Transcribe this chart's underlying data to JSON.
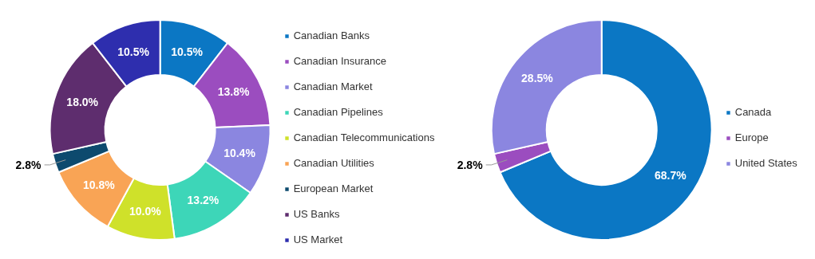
{
  "chart_data": [
    {
      "type": "donut",
      "categories": [
        "Canadian Banks",
        "Canadian Insurance",
        "Canadian Market",
        "Canadian Pipelines",
        "Canadian Telecommunications",
        "Canadian Utilities",
        "European Market",
        "US Banks",
        "US Market"
      ],
      "values": [
        10.5,
        13.8,
        10.4,
        13.2,
        10.0,
        10.8,
        2.8,
        18.0,
        10.5
      ],
      "value_labels": [
        "10.5%",
        "13.8%",
        "10.4%",
        "13.2%",
        "10.0%",
        "10.8%",
        "2.8%",
        "18.0%",
        "10.5%"
      ],
      "colors": [
        "#0b77c4",
        "#9b4dbf",
        "#8b86e0",
        "#3dd6b8",
        "#cfe12a",
        "#f9a455",
        "#0d4a6e",
        "#5e2d6e",
        "#2e2eae"
      ],
      "legend": "right"
    },
    {
      "type": "donut",
      "categories": [
        "Canada",
        "Europe",
        "United States"
      ],
      "values": [
        68.7,
        2.8,
        28.5
      ],
      "value_labels": [
        "68.7%",
        "2.8%",
        "28.5%"
      ],
      "colors": [
        "#0b77c4",
        "#9b4dbf",
        "#8b86e0"
      ],
      "legend": "right"
    }
  ]
}
